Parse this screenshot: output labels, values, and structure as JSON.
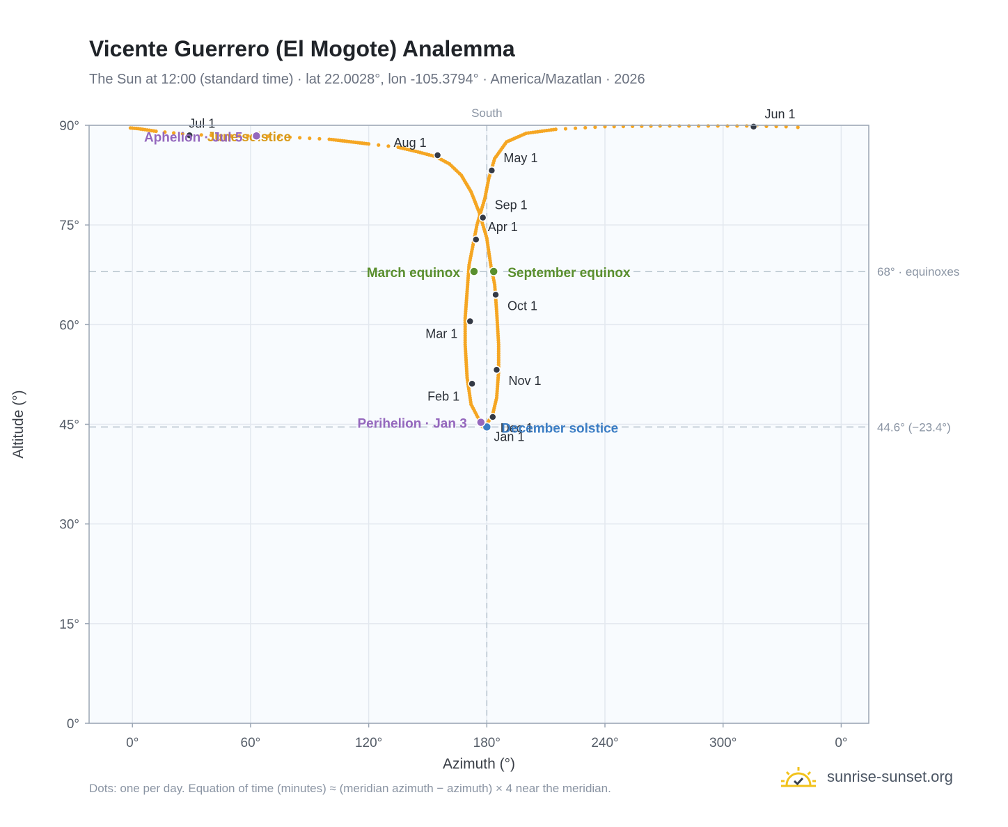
{
  "title": "Vicente Guerrero (El Mogote) Analemma",
  "subtitle": "The Sun at 12:00 (standard time) · lat 22.0028°, lon -105.3794° · America/Mazatlan · 2026",
  "footnote": "Dots: one per day. Equation of time (minutes) ≈ (meridian azimuth − azimuth) × 4 near the meridian.",
  "brand": "sunrise-sunset.org",
  "colors": {
    "curve": "#f5a623",
    "month_dot": "#343a46",
    "equinox": "#5a8f2e",
    "december_solstice": "#3b7dc4",
    "june_solstice": "#d99a1a",
    "perihelion": "#9467bd",
    "aphelion": "#9467bd",
    "plot_bg": "#f8fbfe",
    "grid": "#e3e8ef",
    "ref_line": "#b4c1cc"
  },
  "chart_data": {
    "type": "scatter",
    "xlabel": "Azimuth (°)",
    "ylabel": "Altitude (°)",
    "x_ticks": [
      "0°",
      "60°",
      "120°",
      "180°",
      "240°",
      "300°",
      "0°"
    ],
    "y_ticks": [
      "0°",
      "15°",
      "30°",
      "45°",
      "60°",
      "75°",
      "90°"
    ],
    "xlim": [
      -22,
      374
    ],
    "ylim": [
      0,
      90
    ],
    "grid": true,
    "south_label": "South",
    "south_azimuth": 180,
    "reference_lines": [
      {
        "altitude": 68,
        "label": "68° · equinoxes"
      },
      {
        "altitude": 44.6,
        "label": "44.6° (−23.4°)"
      }
    ],
    "analemma_path": [
      [
        178,
        44.6
      ],
      [
        172,
        48
      ],
      [
        170,
        52
      ],
      [
        169,
        57
      ],
      [
        169,
        61
      ],
      [
        170,
        65
      ],
      [
        171,
        69
      ],
      [
        173,
        72
      ],
      [
        175,
        75
      ],
      [
        177,
        77
      ],
      [
        179,
        79
      ],
      [
        181,
        82
      ],
      [
        184,
        85
      ],
      [
        190,
        87.5
      ],
      [
        200,
        88.8
      ],
      [
        215,
        89.4
      ],
      [
        240,
        89.8
      ],
      [
        268,
        89.9
      ],
      [
        312,
        89.9
      ],
      [
        332,
        89.8
      ],
      [
        344,
        89.6
      ]
    ],
    "analemma_path_2": [
      [
        -1,
        89.6
      ],
      [
        3,
        89.5
      ],
      [
        12,
        89.1
      ],
      [
        30,
        88.6
      ],
      [
        50,
        88.4
      ],
      [
        63,
        88.4
      ],
      [
        80,
        88.2
      ],
      [
        100,
        87.9
      ],
      [
        120,
        87.2
      ],
      [
        135,
        86.7
      ],
      [
        145,
        86
      ],
      [
        154,
        85.3
      ],
      [
        161,
        84.2
      ],
      [
        167,
        82.5
      ],
      [
        172,
        80
      ],
      [
        176,
        77
      ],
      [
        180,
        73
      ],
      [
        182,
        69
      ],
      [
        184,
        66
      ],
      [
        185,
        62
      ],
      [
        186,
        57
      ],
      [
        186,
        53
      ],
      [
        185,
        49
      ],
      [
        183,
        46.5
      ],
      [
        180,
        45
      ]
    ],
    "month_points": [
      {
        "label": "Jan 1",
        "az": 180,
        "alt": 44.6
      },
      {
        "label": "Feb 1",
        "az": 172.5,
        "alt": 51.1
      },
      {
        "label": "Mar 1",
        "az": 171.5,
        "alt": 60.5
      },
      {
        "label": "Apr 1",
        "az": 174.5,
        "alt": 72.8
      },
      {
        "label": "May 1",
        "az": 182.5,
        "alt": 83.2
      },
      {
        "label": "Jun 1",
        "az": 315.5,
        "alt": 89.8
      },
      {
        "label": "Jul 1",
        "az": 29,
        "alt": 88.5
      },
      {
        "label": "Aug 1",
        "az": 155,
        "alt": 85.5
      },
      {
        "label": "Sep 1",
        "az": 178,
        "alt": 76.1
      },
      {
        "label": "Oct 1",
        "az": 184.5,
        "alt": 64.5
      },
      {
        "label": "Nov 1",
        "az": 185,
        "alt": 53.2
      },
      {
        "label": "Dec 1",
        "az": 183,
        "alt": 46.1
      }
    ],
    "events": [
      {
        "label": "March equinox",
        "az": 173.5,
        "alt": 68
      },
      {
        "label": "September equinox",
        "az": 183.5,
        "alt": 68
      },
      {
        "label": "December solstice",
        "az": 180,
        "alt": 44.6
      },
      {
        "label": "June solstice",
        "az": 330,
        "alt": 89.9
      },
      {
        "label": "Perihelion · Jan 3",
        "az": 177,
        "alt": 45.3
      },
      {
        "label": "Aphelion · Jul 5",
        "az": 63,
        "alt": 88.4
      }
    ]
  }
}
